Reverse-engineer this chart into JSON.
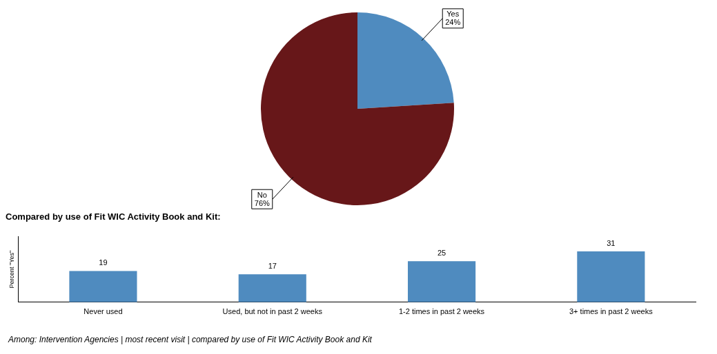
{
  "chart_data": [
    {
      "type": "pie",
      "categories": [
        "Yes",
        "No"
      ],
      "values": [
        24,
        76
      ],
      "colors": [
        "#4f8bbf",
        "#671719"
      ],
      "value_labels": [
        "24%",
        "76%"
      ]
    },
    {
      "type": "bar",
      "title": "Compared by use of Fit WIC Activity Book and Kit:",
      "ylabel": "Percent \"Yes\"",
      "categories": [
        "Never used",
        "Used, but not in past 2 weeks",
        "1-2 times in past 2 weeks",
        "3+ times in past 2 weeks"
      ],
      "values": [
        19,
        17,
        25,
        31
      ],
      "color": "#4f8bbf",
      "data_labels": true,
      "tick_labels": "x",
      "grid": false,
      "annotations": [
        "Among: Intervention Agencies | most recent visit | compared by use of Fit WIC Activity Book and Kit"
      ]
    }
  ]
}
